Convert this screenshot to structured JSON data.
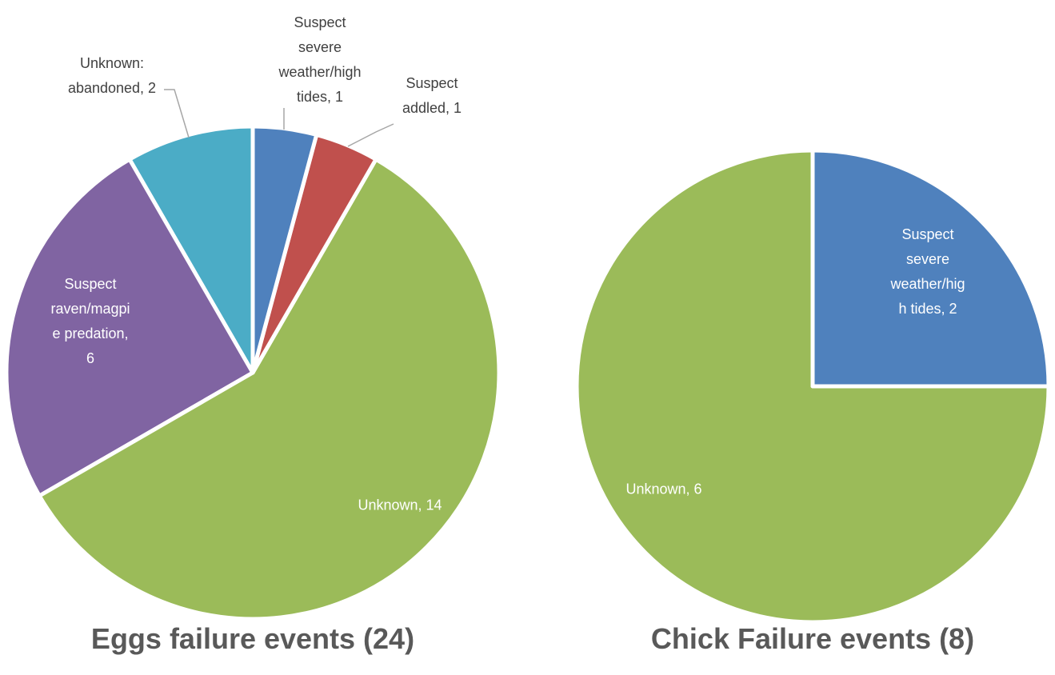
{
  "chart_data": [
    {
      "type": "pie",
      "title": "Eggs failure events (24)",
      "values": [
        1,
        1,
        14,
        6,
        2
      ],
      "value_labels": [
        "Suspect severe weather/high tides, 1",
        "Suspect addled, 1",
        "Unknown, 14",
        "Suspect raven/magpie predation, 6",
        "Unknown: abandoned, 2"
      ],
      "colors": [
        "#4f81bd",
        "#c0504d",
        "#9bbb59",
        "#8064a2",
        "#4bacc6"
      ]
    },
    {
      "type": "pie",
      "title": "Chick Failure events (8)",
      "values": [
        2,
        6
      ],
      "value_labels": [
        "Suspect severe weather/high tides, 2",
        "Unknown, 6"
      ],
      "colors": [
        "#4f81bd",
        "#9bbb59"
      ]
    }
  ]
}
